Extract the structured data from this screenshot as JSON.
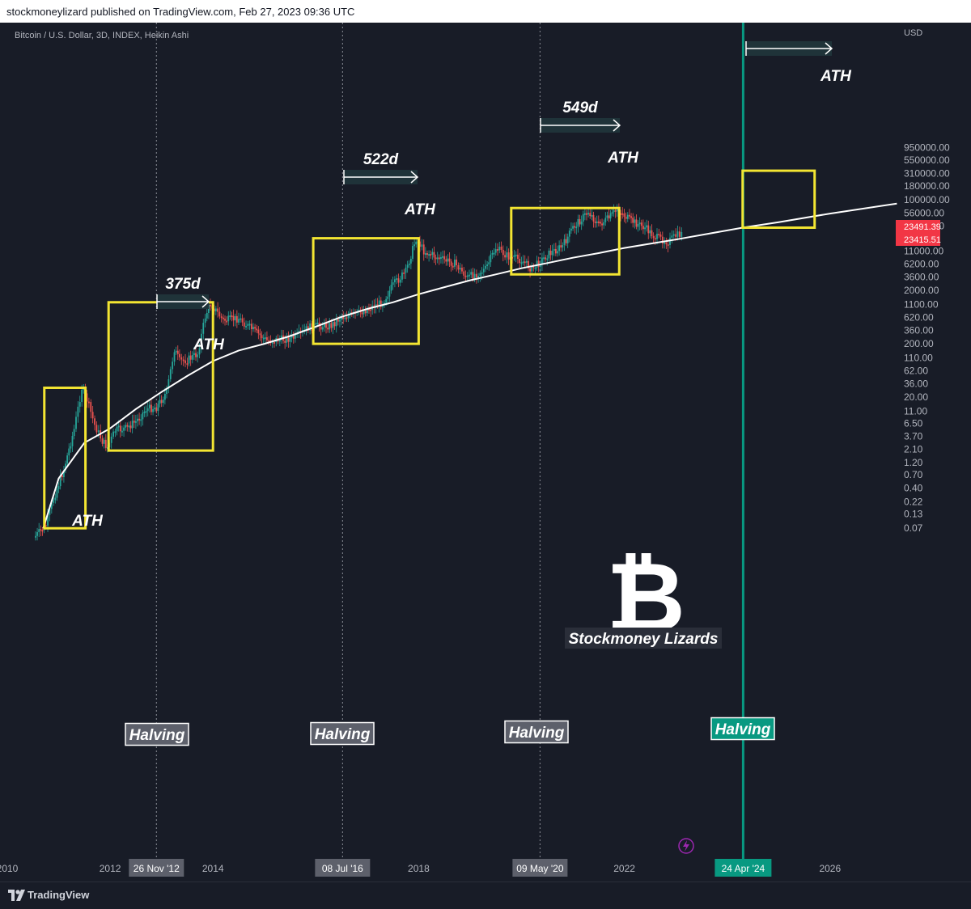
{
  "header": {
    "published": "stockmoneylizard published on TradingView.com, Feb 27, 2023 09:36 UTC"
  },
  "symbol_line": "Bitcoin / U.S. Dollar, 3D, INDEX, Heikin Ashi",
  "footer": {
    "brand": "TradingView"
  },
  "colors": {
    "background": "#181c27",
    "box": "#f3e532",
    "up": "#26a69a",
    "down": "#ef5350",
    "halving_future": "#089981",
    "price_tag": "#f23645"
  },
  "chart_data": {
    "type": "line",
    "title": "",
    "y_axis": {
      "unit": "USD",
      "scale": "log",
      "ticks": [
        "950000.00",
        "550000.00",
        "310000.00",
        "180000.00",
        "100000.00",
        "56000.00",
        "32000.00",
        "11000.00",
        "6200.00",
        "3600.00",
        "2000.00",
        "1100.00",
        "620.00",
        "360.00",
        "200.00",
        "110.00",
        "62.00",
        "36.00",
        "20.00",
        "11.00",
        "6.50",
        "3.70",
        "2.10",
        "1.20",
        "0.70",
        "0.40",
        "0.22",
        "0.13",
        "0.07"
      ]
    },
    "x_axis": {
      "ticks": [
        "2010",
        "2012",
        "2014",
        "2018",
        "2022",
        "2026"
      ]
    },
    "price_tags": [
      "23491.39",
      "23415.51"
    ],
    "series": [
      {
        "type": "candles",
        "values_note_free": true,
        "points": [
          [
            2010.55,
            0.05
          ],
          [
            2010.75,
            0.08
          ],
          [
            2010.9,
            0.25
          ],
          [
            2011.1,
            0.9
          ],
          [
            2011.3,
            5
          ],
          [
            2011.45,
            30
          ],
          [
            2011.55,
            18
          ],
          [
            2011.7,
            6
          ],
          [
            2011.85,
            3
          ],
          [
            2011.95,
            2.3
          ],
          [
            2012.1,
            4.8
          ],
          [
            2012.3,
            5.2
          ],
          [
            2012.5,
            7
          ],
          [
            2012.7,
            12
          ],
          [
            2012.9,
            13
          ],
          [
            2013.1,
            25
          ],
          [
            2013.25,
            160
          ],
          [
            2013.35,
            95
          ],
          [
            2013.5,
            100
          ],
          [
            2013.7,
            130
          ],
          [
            2013.85,
            650
          ],
          [
            2013.95,
            1150
          ],
          [
            2014.2,
            550
          ],
          [
            2014.5,
            600
          ],
          [
            2014.75,
            380
          ],
          [
            2015.05,
            230
          ],
          [
            2015.3,
            240
          ],
          [
            2015.6,
            260
          ],
          [
            2015.85,
            400
          ],
          [
            2016.0,
            430
          ],
          [
            2016.3,
            440
          ],
          [
            2016.5,
            650
          ],
          [
            2016.8,
            720
          ],
          [
            2017.0,
            900
          ],
          [
            2017.3,
            1200
          ],
          [
            2017.5,
            2500
          ],
          [
            2017.75,
            4500
          ],
          [
            2017.95,
            19000
          ],
          [
            2018.1,
            11000
          ],
          [
            2018.4,
            8000
          ],
          [
            2018.7,
            6400
          ],
          [
            2018.95,
            3500
          ],
          [
            2019.3,
            5000
          ],
          [
            2019.5,
            12500
          ],
          [
            2019.75,
            8500
          ],
          [
            2020.0,
            7500
          ],
          [
            2020.2,
            5000
          ],
          [
            2020.5,
            9300
          ],
          [
            2020.8,
            13500
          ],
          [
            2021.0,
            30000
          ],
          [
            2021.3,
            60000
          ],
          [
            2021.5,
            34000
          ],
          [
            2021.7,
            45000
          ],
          [
            2021.86,
            67000
          ],
          [
            2022.1,
            42000
          ],
          [
            2022.4,
            30000
          ],
          [
            2022.6,
            20000
          ],
          [
            2022.85,
            16500
          ],
          [
            2023.0,
            21000
          ],
          [
            2023.15,
            23400
          ]
        ]
      },
      {
        "type": "regression_curve",
        "points": [
          [
            2010.7,
            0.07
          ],
          [
            2011.0,
            0.6
          ],
          [
            2011.5,
            2.8
          ],
          [
            2012.0,
            5.2
          ],
          [
            2012.5,
            12
          ],
          [
            2013.0,
            25
          ],
          [
            2013.5,
            50
          ],
          [
            2014.0,
            95
          ],
          [
            2014.5,
            150
          ],
          [
            2015.0,
            200
          ],
          [
            2015.5,
            280
          ],
          [
            2016.0,
            420
          ],
          [
            2016.5,
            640
          ],
          [
            2017.0,
            900
          ],
          [
            2017.5,
            1200
          ],
          [
            2018.0,
            1700
          ],
          [
            2018.5,
            2300
          ],
          [
            2019.0,
            3100
          ],
          [
            2019.5,
            4000
          ],
          [
            2020.0,
            5200
          ],
          [
            2020.5,
            6500
          ],
          [
            2021.0,
            8200
          ],
          [
            2021.5,
            10000
          ],
          [
            2022.0,
            12500
          ],
          [
            2022.5,
            15000
          ],
          [
            2023.0,
            18000
          ],
          [
            2024.3,
            30000
          ],
          [
            2025.0,
            38000
          ],
          [
            2026.0,
            55000
          ],
          [
            2027.3,
            85000
          ]
        ]
      }
    ],
    "halvings": [
      {
        "label": "Halving",
        "date_label": "26 Nov '12"
      },
      {
        "label": "Halving",
        "date_label": "08 Jul '16"
      },
      {
        "label": "Halving",
        "date_label": "09 May '20"
      },
      {
        "label": "Halving",
        "date_label": "24 Apr '24",
        "future": true
      }
    ],
    "cycle_boxes": [
      {
        "from": 2010.72,
        "to": 2011.52,
        "low": 0.07,
        "high": 30
      },
      {
        "from": 2011.97,
        "to": 2014.0,
        "low": 2.0,
        "high": 1200
      },
      {
        "from": 2015.95,
        "to": 2018.0,
        "low": 200,
        "high": 19000
      },
      {
        "from": 2019.8,
        "to": 2021.9,
        "low": 4000,
        "high": 70000
      },
      {
        "from": 2024.3,
        "to": 2025.7,
        "low": 30000,
        "high": 350000
      }
    ],
    "annotations": [
      {
        "text": "ATH"
      },
      {
        "text": "ATH"
      },
      {
        "text": "ATH"
      },
      {
        "text": "ATH"
      },
      {
        "text": "ATH"
      },
      {
        "text": "375d"
      },
      {
        "text": "522d"
      },
      {
        "text": "549d"
      }
    ],
    "watermark": "Stockmoney Lizards",
    "grid": false
  }
}
